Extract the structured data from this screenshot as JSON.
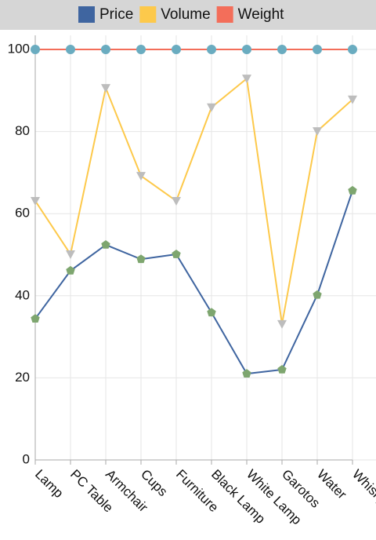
{
  "chart_data": {
    "type": "line",
    "categories": [
      "Lamp",
      "PC Table",
      "Armchair",
      "Cups",
      "Furniture",
      "Black Lamp",
      "White Lamp",
      "Garotos",
      "Water",
      "Whisky"
    ],
    "series": [
      {
        "name": "Price",
        "color": "#3f65a0",
        "marker": "pentagon",
        "marker_color": "#7ea66f",
        "values": [
          34.4,
          46.1,
          52.4,
          48.9,
          50.1,
          35.9,
          21.0,
          22.0,
          40.2,
          65.6
        ]
      },
      {
        "name": "Volume",
        "color": "#fdc94b",
        "marker": "triangle-down",
        "marker_color": "#bdbdbd",
        "values": [
          63.1,
          50.1,
          90.6,
          69.2,
          63.1,
          85.9,
          92.9,
          33.1,
          80.1,
          87.8
        ]
      },
      {
        "name": "Weight",
        "color": "#f36e5a",
        "marker": "circle",
        "marker_color": "#6aacc0",
        "values": [
          100,
          100,
          100,
          100,
          100,
          100,
          100,
          100,
          100,
          100
        ]
      }
    ],
    "ylim": [
      0,
      100
    ],
    "yticks": [
      0,
      20,
      40,
      60,
      80,
      100
    ],
    "grid": true,
    "legend": "top"
  }
}
